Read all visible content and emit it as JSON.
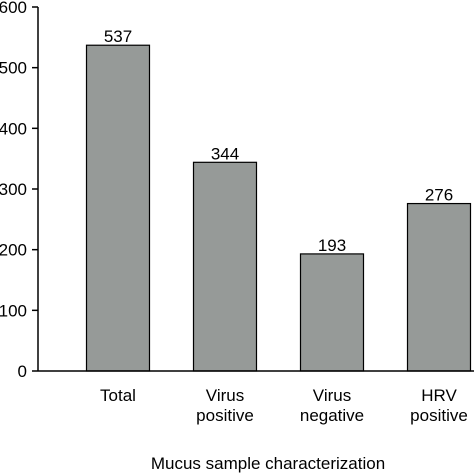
{
  "chart_data": {
    "type": "bar",
    "categories": [
      [
        "Total"
      ],
      [
        "Virus",
        "positive"
      ],
      [
        "Virus",
        "negative"
      ],
      [
        "HRV",
        "positive"
      ]
    ],
    "values": [
      537,
      344,
      193,
      276
    ],
    "value_labels": [
      "537",
      "344",
      "193",
      "276"
    ],
    "xlabel": "Mucus sample characterization",
    "ylabel": "",
    "ylim": [
      0,
      600
    ],
    "yticks": [
      0,
      100,
      200,
      300,
      400,
      500,
      600
    ],
    "ytick_labels": [
      "0",
      "100",
      "200",
      "300",
      "400",
      "500",
      "600"
    ],
    "grid": false,
    "legend": "none",
    "bar_color": "#969a98",
    "bar_edge_color": "#000000"
  }
}
